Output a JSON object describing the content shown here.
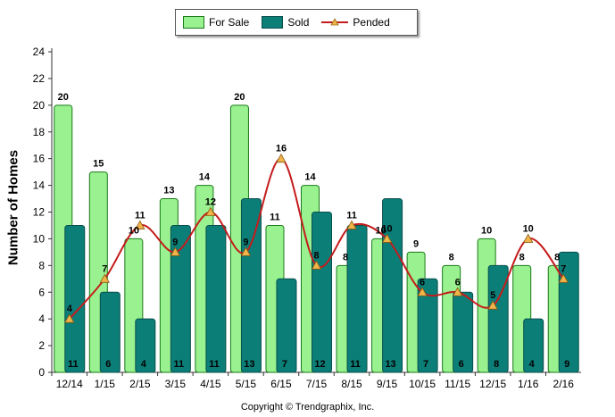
{
  "legend": {
    "for_sale": "For Sale",
    "sold": "Sold",
    "pended": "Pended"
  },
  "copyright": "Copyright © Trendgraphix, Inc.",
  "colors": {
    "for_sale_fill": "#99f28f",
    "for_sale_edge": "#1a7a1a",
    "sold_fill": "#0c7e78",
    "sold_edge": "#084f4b",
    "pended_line": "#c41c1c",
    "pended_marker": "#f0b44a"
  },
  "chart_data": {
    "type": "bar",
    "title": "",
    "xlabel": "",
    "ylabel": "Number of Homes",
    "ylim": [
      0,
      24
    ],
    "yticks": [
      0,
      2,
      4,
      6,
      8,
      10,
      12,
      14,
      16,
      18,
      20,
      22,
      24
    ],
    "grid": false,
    "legend_position": "top-center",
    "categories": [
      "12/14",
      "1/15",
      "2/15",
      "3/15",
      "4/15",
      "5/15",
      "6/15",
      "7/15",
      "8/15",
      "9/15",
      "10/15",
      "11/15",
      "12/15",
      "1/16",
      "2/16"
    ],
    "series": [
      {
        "name": "For Sale",
        "type": "bar",
        "values": [
          20,
          15,
          10,
          13,
          14,
          20,
          11,
          14,
          8,
          10,
          9,
          8,
          10,
          8,
          8
        ]
      },
      {
        "name": "Sold",
        "type": "bar",
        "values": [
          11,
          6,
          4,
          11,
          11,
          13,
          7,
          12,
          11,
          13,
          7,
          6,
          8,
          4,
          9
        ]
      },
      {
        "name": "Pended",
        "type": "line",
        "values": [
          4,
          7,
          11,
          9,
          12,
          9,
          16,
          8,
          11,
          10,
          6,
          6,
          5,
          10,
          7
        ]
      }
    ]
  }
}
